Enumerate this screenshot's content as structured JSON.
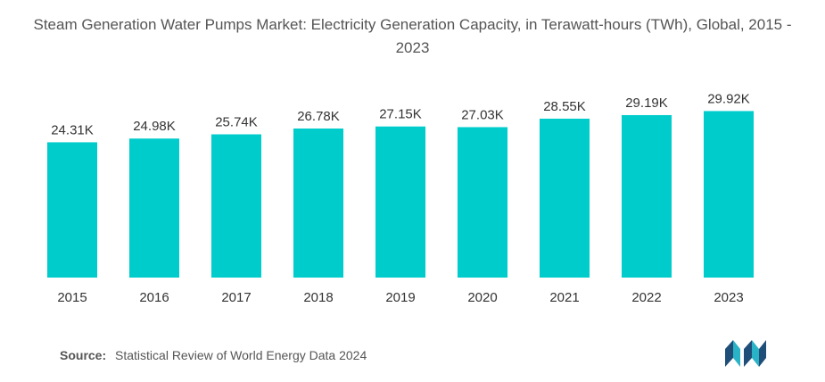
{
  "title": "Steam Generation Water Pumps Market: Electricity Generation Capacity, in Terawatt-hours (TWh), Global, 2015 - 2023",
  "source": {
    "label": "Source:",
    "text": "Statistical Review of World Energy Data 2024"
  },
  "logo": {
    "icon": "mordor-intelligence-logo-icon",
    "colors": [
      "#1f4e79",
      "#2ab3c6"
    ]
  },
  "colors": {
    "bar": "#00cccc",
    "text": "#333333",
    "title": "#555555"
  },
  "chart_data": {
    "type": "bar",
    "title": "Steam Generation Water Pumps Market: Electricity Generation Capacity, in Terawatt-hours (TWh), Global, 2015 - 2023",
    "xlabel": "",
    "ylabel": "",
    "categories": [
      "2015",
      "2016",
      "2017",
      "2018",
      "2019",
      "2020",
      "2021",
      "2022",
      "2023"
    ],
    "values": [
      24.31,
      24.98,
      25.74,
      26.78,
      27.15,
      27.03,
      28.55,
      29.19,
      29.92
    ],
    "value_labels": [
      "24.31K",
      "24.98K",
      "25.74K",
      "26.78K",
      "27.15K",
      "27.03K",
      "28.55K",
      "29.19K",
      "29.92K"
    ],
    "unit": "K",
    "ylim": [
      0,
      34.8
    ],
    "grid": false,
    "legend": "none"
  }
}
